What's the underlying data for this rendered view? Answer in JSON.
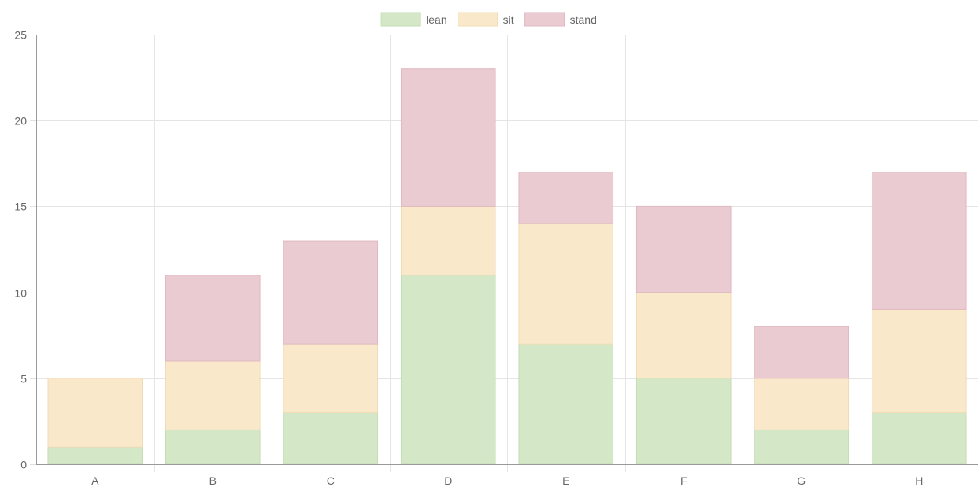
{
  "chart_data": {
    "type": "bar",
    "stacked": true,
    "categories": [
      "A",
      "B",
      "C",
      "D",
      "E",
      "F",
      "G",
      "H"
    ],
    "series": [
      {
        "name": "lean",
        "color": "#d4e7c6",
        "border": "#c5ddb3",
        "values": [
          1,
          2,
          3,
          11,
          7,
          5,
          2,
          3
        ]
      },
      {
        "name": "sit",
        "color": "#fae8cb",
        "border": "#f2dcb6",
        "values": [
          4,
          4,
          4,
          4,
          7,
          5,
          3,
          6
        ]
      },
      {
        "name": "stand",
        "color": "#eacbd1",
        "border": "#e0b9c1",
        "values": [
          0,
          5,
          6,
          8,
          3,
          5,
          3,
          8
        ]
      }
    ],
    "ylim": [
      0,
      25
    ],
    "yticks": [
      "0",
      "5",
      "10",
      "15",
      "20",
      "25"
    ],
    "grid": true,
    "legend_position": "top-center"
  }
}
